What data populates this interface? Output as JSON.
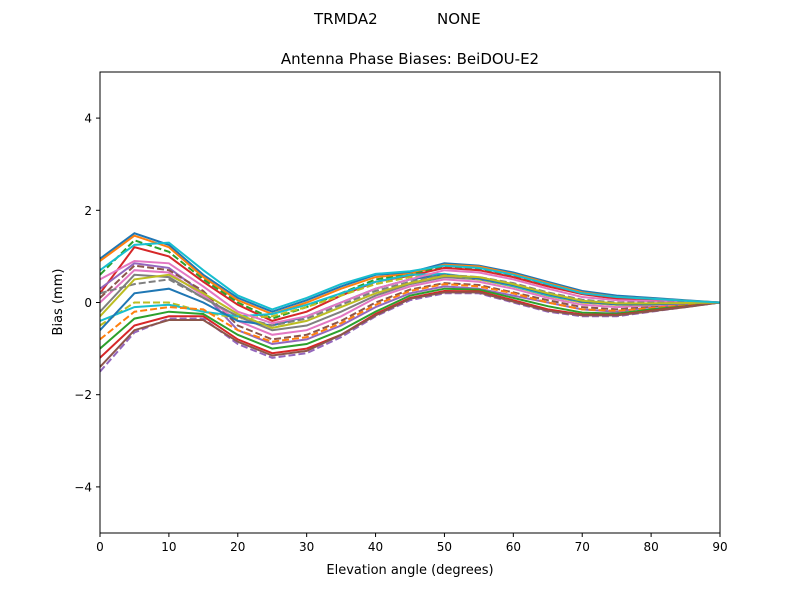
{
  "chart_data": {
    "type": "line",
    "suptitle_left": "TRMDA2",
    "suptitle_right": "NONE",
    "title": "Antenna Phase Biases: BeiDOU-E2",
    "xlabel": "Elevation angle (degrees)",
    "ylabel": "Bias (mm)",
    "xlim": [
      0,
      90
    ],
    "ylim": [
      -5,
      5
    ],
    "xticks": [
      0,
      10,
      20,
      30,
      40,
      50,
      60,
      70,
      80,
      90
    ],
    "yticks": [
      -4,
      -2,
      0,
      2,
      4
    ],
    "ytick_labels": [
      "−4",
      "−2",
      "0",
      "2",
      "4"
    ],
    "grid": false,
    "legend": "none",
    "colors": [
      "#1f77b4",
      "#ff7f0e",
      "#2ca02c",
      "#d62728",
      "#9467bd",
      "#8c564b",
      "#e377c2",
      "#7f7f7f",
      "#bcbd22",
      "#17becf"
    ],
    "x": [
      0,
      5,
      10,
      15,
      20,
      25,
      30,
      35,
      40,
      45,
      50,
      55,
      60,
      65,
      70,
      75,
      80,
      85,
      90
    ],
    "series": [
      {
        "values": [
          0.95,
          1.5,
          1.25,
          0.6,
          0.1,
          -0.2,
          0.05,
          0.35,
          0.6,
          0.65,
          0.85,
          0.8,
          0.65,
          0.45,
          0.25,
          0.15,
          0.1,
          0.05,
          0
        ]
      },
      {
        "values": [
          0.9,
          1.45,
          1.2,
          0.55,
          0.05,
          -0.25,
          0.0,
          0.3,
          0.55,
          0.62,
          0.82,
          0.78,
          0.62,
          0.42,
          0.22,
          0.12,
          0.08,
          0.04,
          0
        ]
      },
      {
        "values": [
          0.6,
          1.35,
          1.1,
          0.5,
          0.0,
          -0.35,
          -0.1,
          0.2,
          0.5,
          0.6,
          0.78,
          0.72,
          0.58,
          0.38,
          0.2,
          0.1,
          0.06,
          0.03,
          0
        ]
      },
      {
        "values": [
          0.2,
          1.2,
          1.0,
          0.45,
          -0.05,
          -0.4,
          -0.2,
          0.15,
          0.45,
          0.58,
          0.75,
          0.7,
          0.55,
          0.35,
          0.18,
          0.08,
          0.05,
          0.02,
          0
        ]
      },
      {
        "values": [
          0.3,
          0.85,
          0.75,
          0.2,
          -0.6,
          -0.9,
          -0.8,
          -0.5,
          -0.1,
          0.2,
          0.35,
          0.3,
          0.15,
          0.0,
          -0.15,
          -0.2,
          -0.1,
          -0.05,
          0
        ]
      },
      {
        "values": [
          0.1,
          0.8,
          0.7,
          0.25,
          -0.5,
          -0.8,
          -0.7,
          -0.4,
          0.0,
          0.28,
          0.42,
          0.38,
          0.22,
          0.05,
          -0.1,
          -0.15,
          -0.08,
          -0.04,
          0
        ]
      },
      {
        "values": [
          0.0,
          0.7,
          0.65,
          0.15,
          -0.4,
          -0.7,
          -0.6,
          -0.3,
          0.1,
          0.35,
          0.5,
          0.45,
          0.3,
          0.1,
          -0.05,
          -0.1,
          -0.06,
          -0.03,
          0
        ]
      },
      {
        "values": [
          -0.2,
          0.6,
          0.55,
          0.1,
          -0.3,
          -0.6,
          -0.5,
          -0.2,
          0.15,
          0.4,
          0.55,
          0.5,
          0.35,
          0.15,
          0.0,
          -0.05,
          -0.04,
          -0.02,
          0
        ]
      },
      {
        "values": [
          -0.5,
          0.0,
          0.0,
          -0.2,
          -0.35,
          -0.3,
          -0.1,
          0.15,
          0.4,
          0.55,
          0.6,
          0.5,
          0.35,
          0.15,
          0.0,
          -0.05,
          -0.05,
          0,
          0
        ]
      },
      {
        "values": [
          -0.4,
          -0.1,
          -0.05,
          -0.2,
          -0.3,
          -0.25,
          -0.05,
          0.2,
          0.45,
          0.6,
          0.62,
          0.52,
          0.36,
          0.16,
          0.02,
          -0.03,
          -0.03,
          0,
          0
        ]
      },
      {
        "values": [
          -0.6,
          0.2,
          0.3,
          0.0,
          -0.4,
          -0.5,
          -0.3,
          0.0,
          0.3,
          0.5,
          0.6,
          0.52,
          0.38,
          0.18,
          0.02,
          -0.04,
          -0.04,
          -0.02,
          0
        ]
      },
      {
        "values": [
          -0.8,
          -0.2,
          -0.1,
          -0.15,
          -0.6,
          -0.85,
          -0.75,
          -0.45,
          -0.05,
          0.25,
          0.4,
          0.35,
          0.2,
          0.0,
          -0.15,
          -0.18,
          -0.12,
          -0.06,
          0
        ]
      },
      {
        "values": [
          -1.0,
          -0.35,
          -0.2,
          -0.25,
          -0.7,
          -1.0,
          -0.9,
          -0.6,
          -0.2,
          0.15,
          0.3,
          0.28,
          0.1,
          -0.08,
          -0.22,
          -0.24,
          -0.15,
          -0.08,
          0
        ]
      },
      {
        "values": [
          -1.2,
          -0.5,
          -0.3,
          -0.3,
          -0.8,
          -1.1,
          -1.0,
          -0.7,
          -0.25,
          0.1,
          0.25,
          0.24,
          0.05,
          -0.15,
          -0.26,
          -0.27,
          -0.18,
          -0.09,
          0
        ]
      },
      {
        "values": [
          -1.5,
          -0.65,
          -0.35,
          -0.35,
          -0.9,
          -1.2,
          -1.1,
          -0.75,
          -0.3,
          0.05,
          0.2,
          0.2,
          0.0,
          -0.2,
          -0.3,
          -0.3,
          -0.2,
          -0.1,
          0
        ]
      },
      {
        "values": [
          -1.4,
          -0.6,
          -0.38,
          -0.38,
          -0.85,
          -1.15,
          -1.05,
          -0.7,
          -0.28,
          0.08,
          0.22,
          0.22,
          0.02,
          -0.18,
          -0.28,
          -0.28,
          -0.19,
          -0.1,
          0
        ]
      },
      {
        "values": [
          0.5,
          0.9,
          0.85,
          0.35,
          -0.2,
          -0.45,
          -0.3,
          0.0,
          0.3,
          0.5,
          0.7,
          0.65,
          0.5,
          0.3,
          0.12,
          0.05,
          0.03,
          0.01,
          0
        ]
      },
      {
        "values": [
          0.2,
          0.4,
          0.5,
          0.1,
          -0.3,
          -0.5,
          -0.35,
          -0.05,
          0.25,
          0.45,
          0.6,
          0.55,
          0.42,
          0.22,
          0.06,
          0.0,
          0.0,
          0,
          0
        ]
      },
      {
        "values": [
          -0.3,
          0.5,
          0.6,
          0.2,
          -0.25,
          -0.55,
          -0.4,
          -0.1,
          0.2,
          0.42,
          0.58,
          0.55,
          0.4,
          0.2,
          0.04,
          -0.02,
          -0.02,
          -0.01,
          0
        ]
      },
      {
        "values": [
          0.7,
          1.25,
          1.3,
          0.7,
          0.15,
          -0.15,
          0.1,
          0.4,
          0.62,
          0.68,
          0.8,
          0.75,
          0.6,
          0.4,
          0.2,
          0.12,
          0.08,
          0.04,
          0
        ]
      }
    ]
  }
}
